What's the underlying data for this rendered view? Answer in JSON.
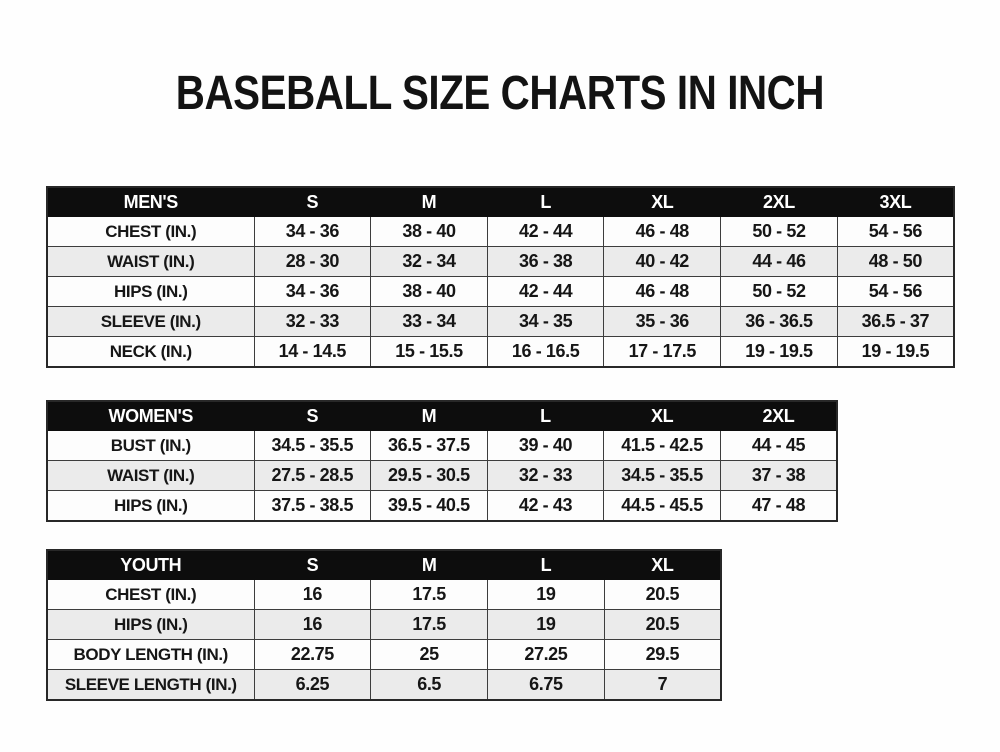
{
  "page": {
    "title": "BASEBALL SIZE CHARTS IN INCH"
  },
  "colors": {
    "header_bg": "#0d0d0d",
    "header_text": "#ffffff",
    "row_alt_bg": "#ebebeb",
    "text": "#161616",
    "border": "#3d3d3d"
  },
  "tables": [
    {
      "name": "mens",
      "header": [
        "MEN'S",
        "S",
        "M",
        "L",
        "XL",
        "2XL",
        "3XL"
      ],
      "rows": [
        [
          "CHEST (IN.)",
          "34 - 36",
          "38 - 40",
          "42 - 44",
          "46 - 48",
          "50 - 52",
          "54 - 56"
        ],
        [
          "WAIST (IN.)",
          "28 - 30",
          "32 - 34",
          "36 - 38",
          "40 - 42",
          "44 - 46",
          "48 - 50"
        ],
        [
          "HIPS (IN.)",
          "34 - 36",
          "38 - 40",
          "42 - 44",
          "46 - 48",
          "50 - 52",
          "54 - 56"
        ],
        [
          "SLEEVE (IN.)",
          "32 - 33",
          "33 - 34",
          "34 - 35",
          "35 - 36",
          "36 - 36.5",
          "36.5 - 37"
        ],
        [
          "NECK (IN.)",
          "14 - 14.5",
          "15 - 15.5",
          "16 - 16.5",
          "17 - 17.5",
          "19 - 19.5",
          "19 - 19.5"
        ]
      ]
    },
    {
      "name": "womens",
      "header": [
        "WOMEN'S",
        "S",
        "M",
        "L",
        "XL",
        "2XL"
      ],
      "rows": [
        [
          "BUST (IN.)",
          "34.5 - 35.5",
          "36.5 - 37.5",
          "39 - 40",
          "41.5 - 42.5",
          "44 - 45"
        ],
        [
          "WAIST (IN.)",
          "27.5 - 28.5",
          "29.5 - 30.5",
          "32 - 33",
          "34.5 - 35.5",
          "37 - 38"
        ],
        [
          "HIPS (IN.)",
          "37.5 - 38.5",
          "39.5 - 40.5",
          "42 - 43",
          "44.5 - 45.5",
          "47 - 48"
        ]
      ]
    },
    {
      "name": "youth",
      "header": [
        "YOUTH",
        "S",
        "M",
        "L",
        "XL"
      ],
      "rows": [
        [
          "CHEST (IN.)",
          "16",
          "17.5",
          "19",
          "20.5"
        ],
        [
          "HIPS (IN.)",
          "16",
          "17.5",
          "19",
          "20.5"
        ],
        [
          "BODY LENGTH (IN.)",
          "22.75",
          "25",
          "27.25",
          "29.5"
        ],
        [
          "SLEEVE LENGTH (IN.)",
          "6.25",
          "6.5",
          "6.75",
          "7"
        ]
      ]
    }
  ]
}
